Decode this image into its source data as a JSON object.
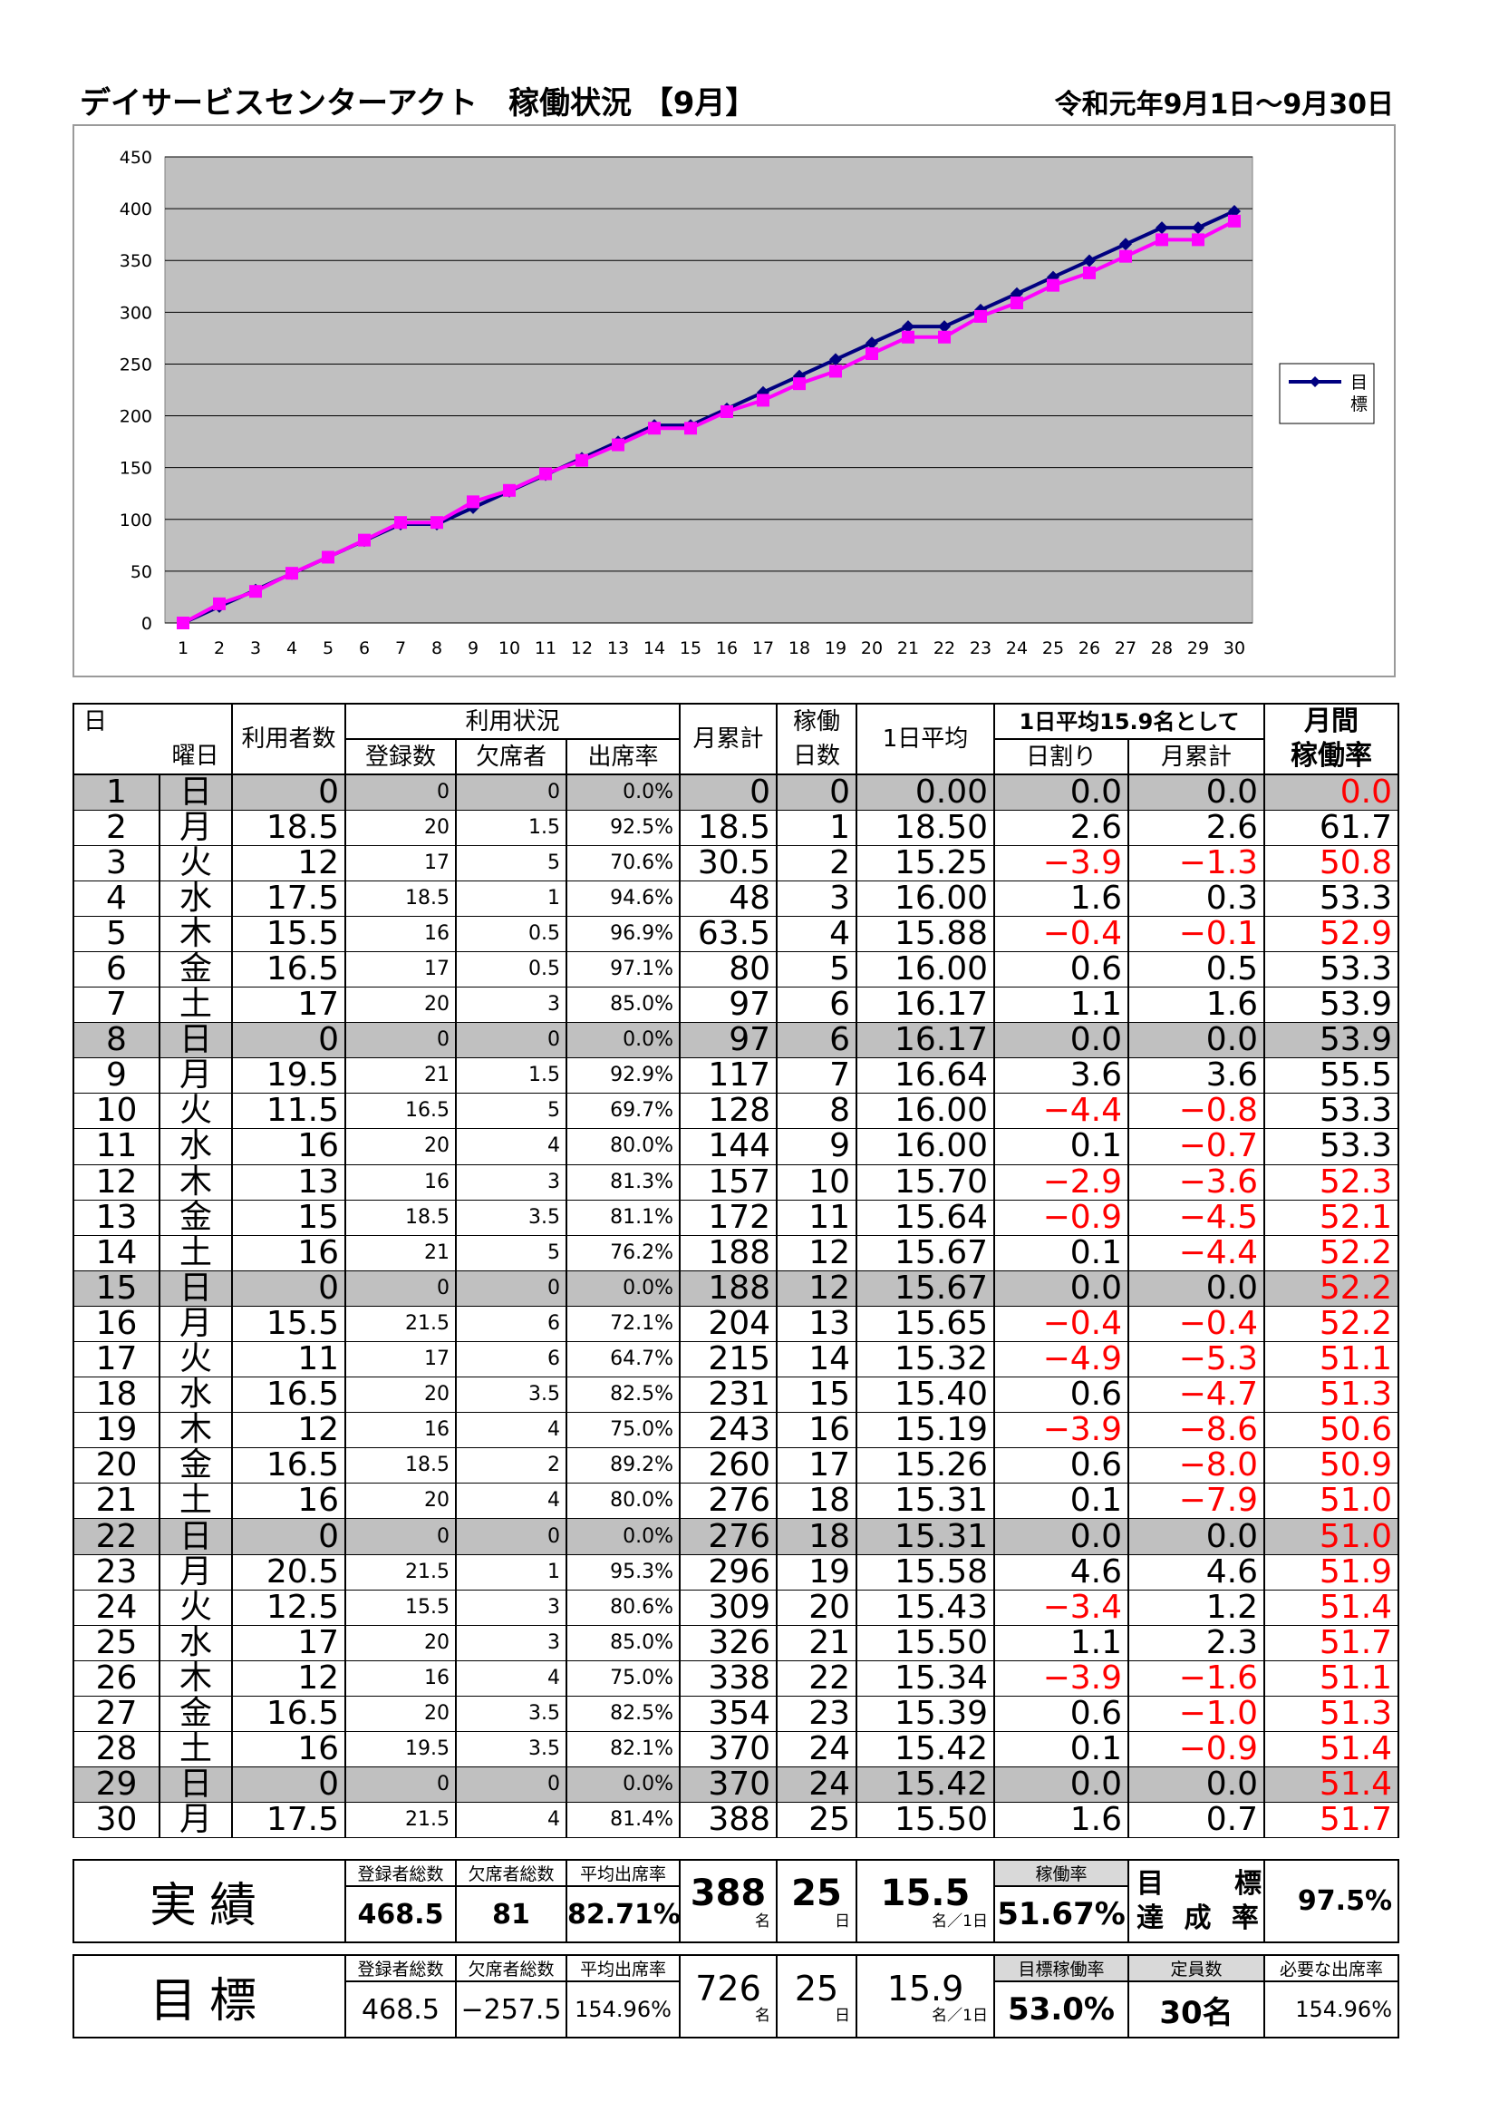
{
  "title": "デイサービスセンターアクト　稼働状況 【9月】",
  "period": "令和元年9月1日～9月30日",
  "chart_data": {
    "type": "line",
    "x": [
      1,
      2,
      3,
      4,
      5,
      6,
      7,
      8,
      9,
      10,
      11,
      12,
      13,
      14,
      15,
      16,
      17,
      18,
      19,
      20,
      21,
      22,
      23,
      24,
      25,
      26,
      27,
      28,
      29,
      30
    ],
    "ylim": [
      0,
      450
    ],
    "yticks": [
      0,
      50,
      100,
      150,
      200,
      250,
      300,
      350,
      400,
      450
    ],
    "legend_position": "right",
    "grid": true,
    "background": "#c0c0c0",
    "series": [
      {
        "name": "目標",
        "color": "#000080",
        "marker": "diamond",
        "values": [
          0,
          15.9,
          31.8,
          47.7,
          63.6,
          79.5,
          95.4,
          95.4,
          111.3,
          127.2,
          143.1,
          159,
          174.9,
          190.8,
          190.8,
          206.7,
          222.6,
          238.5,
          254.4,
          270.3,
          286.2,
          286.2,
          302.1,
          318,
          333.9,
          349.8,
          365.7,
          381.6,
          381.6,
          397.5
        ]
      },
      {
        "color": "#ff00ff",
        "marker": "square",
        "values": [
          0,
          18.5,
          30.5,
          48,
          63.5,
          80,
          97,
          97,
          117,
          128,
          144,
          157,
          172,
          188,
          188,
          204,
          215,
          231,
          243,
          260,
          276,
          276,
          296,
          309,
          326,
          338,
          354,
          370,
          370,
          388
        ]
      }
    ]
  },
  "table": {
    "headers": {
      "day": "日",
      "weekday": "曜日",
      "users": "利用者数",
      "usage": "利用状況",
      "registered": "登録数",
      "absent": "欠席者",
      "attendance": "出席率",
      "cumulative": "月累計",
      "working": "稼働",
      "working2": "日数",
      "avg": "1日平均",
      "assume": "1日平均15.9名として",
      "daily": "日割り",
      "monthcum": "月累計",
      "rate1": "月間",
      "rate2": "稼働率"
    },
    "rows": [
      {
        "day": "1",
        "wd": "日",
        "users": "0",
        "reg": "0",
        "abs": "0",
        "att": "0.0%",
        "cum": "0",
        "days": "0",
        "avg": "0.00",
        "daily": "0.0",
        "mcum": "0.0",
        "rate": "0.0",
        "sun": true,
        "dneg": false,
        "mneg": false,
        "rneg": true
      },
      {
        "day": "2",
        "wd": "月",
        "users": "18.5",
        "reg": "20",
        "abs": "1.5",
        "att": "92.5%",
        "cum": "18.5",
        "days": "1",
        "avg": "18.50",
        "daily": "2.6",
        "mcum": "2.6",
        "rate": "61.7",
        "sun": false,
        "dneg": false,
        "mneg": false,
        "rneg": false
      },
      {
        "day": "3",
        "wd": "火",
        "users": "12",
        "reg": "17",
        "abs": "5",
        "att": "70.6%",
        "cum": "30.5",
        "days": "2",
        "avg": "15.25",
        "daily": "−3.9",
        "mcum": "−1.3",
        "rate": "50.8",
        "sun": false,
        "dneg": true,
        "mneg": true,
        "rneg": true
      },
      {
        "day": "4",
        "wd": "水",
        "users": "17.5",
        "reg": "18.5",
        "abs": "1",
        "att": "94.6%",
        "cum": "48",
        "days": "3",
        "avg": "16.00",
        "daily": "1.6",
        "mcum": "0.3",
        "rate": "53.3",
        "sun": false,
        "dneg": false,
        "mneg": false,
        "rneg": false
      },
      {
        "day": "5",
        "wd": "木",
        "users": "15.5",
        "reg": "16",
        "abs": "0.5",
        "att": "96.9%",
        "cum": "63.5",
        "days": "4",
        "avg": "15.88",
        "daily": "−0.4",
        "mcum": "−0.1",
        "rate": "52.9",
        "sun": false,
        "dneg": true,
        "mneg": true,
        "rneg": true
      },
      {
        "day": "6",
        "wd": "金",
        "users": "16.5",
        "reg": "17",
        "abs": "0.5",
        "att": "97.1%",
        "cum": "80",
        "days": "5",
        "avg": "16.00",
        "daily": "0.6",
        "mcum": "0.5",
        "rate": "53.3",
        "sun": false,
        "dneg": false,
        "mneg": false,
        "rneg": false
      },
      {
        "day": "7",
        "wd": "土",
        "users": "17",
        "reg": "20",
        "abs": "3",
        "att": "85.0%",
        "cum": "97",
        "days": "6",
        "avg": "16.17",
        "daily": "1.1",
        "mcum": "1.6",
        "rate": "53.9",
        "sun": false,
        "dneg": false,
        "mneg": false,
        "rneg": false
      },
      {
        "day": "8",
        "wd": "日",
        "users": "0",
        "reg": "0",
        "abs": "0",
        "att": "0.0%",
        "cum": "97",
        "days": "6",
        "avg": "16.17",
        "daily": "0.0",
        "mcum": "0.0",
        "rate": "53.9",
        "sun": true,
        "dneg": false,
        "mneg": false,
        "rneg": false
      },
      {
        "day": "9",
        "wd": "月",
        "users": "19.5",
        "reg": "21",
        "abs": "1.5",
        "att": "92.9%",
        "cum": "117",
        "days": "7",
        "avg": "16.64",
        "daily": "3.6",
        "mcum": "3.6",
        "rate": "55.5",
        "sun": false,
        "dneg": false,
        "mneg": false,
        "rneg": false
      },
      {
        "day": "10",
        "wd": "火",
        "users": "11.5",
        "reg": "16.5",
        "abs": "5",
        "att": "69.7%",
        "cum": "128",
        "days": "8",
        "avg": "16.00",
        "daily": "−4.4",
        "mcum": "−0.8",
        "rate": "53.3",
        "sun": false,
        "dneg": true,
        "mneg": true,
        "rneg": false
      },
      {
        "day": "11",
        "wd": "水",
        "users": "16",
        "reg": "20",
        "abs": "4",
        "att": "80.0%",
        "cum": "144",
        "days": "9",
        "avg": "16.00",
        "daily": "0.1",
        "mcum": "−0.7",
        "rate": "53.3",
        "sun": false,
        "dneg": false,
        "mneg": true,
        "rneg": false
      },
      {
        "day": "12",
        "wd": "木",
        "users": "13",
        "reg": "16",
        "abs": "3",
        "att": "81.3%",
        "cum": "157",
        "days": "10",
        "avg": "15.70",
        "daily": "−2.9",
        "mcum": "−3.6",
        "rate": "52.3",
        "sun": false,
        "dneg": true,
        "mneg": true,
        "rneg": true
      },
      {
        "day": "13",
        "wd": "金",
        "users": "15",
        "reg": "18.5",
        "abs": "3.5",
        "att": "81.1%",
        "cum": "172",
        "days": "11",
        "avg": "15.64",
        "daily": "−0.9",
        "mcum": "−4.5",
        "rate": "52.1",
        "sun": false,
        "dneg": true,
        "mneg": true,
        "rneg": true
      },
      {
        "day": "14",
        "wd": "土",
        "users": "16",
        "reg": "21",
        "abs": "5",
        "att": "76.2%",
        "cum": "188",
        "days": "12",
        "avg": "15.67",
        "daily": "0.1",
        "mcum": "−4.4",
        "rate": "52.2",
        "sun": false,
        "dneg": false,
        "mneg": true,
        "rneg": true
      },
      {
        "day": "15",
        "wd": "日",
        "users": "0",
        "reg": "0",
        "abs": "0",
        "att": "0.0%",
        "cum": "188",
        "days": "12",
        "avg": "15.67",
        "daily": "0.0",
        "mcum": "0.0",
        "rate": "52.2",
        "sun": true,
        "dneg": false,
        "mneg": false,
        "rneg": true
      },
      {
        "day": "16",
        "wd": "月",
        "users": "15.5",
        "reg": "21.5",
        "abs": "6",
        "att": "72.1%",
        "cum": "204",
        "days": "13",
        "avg": "15.65",
        "daily": "−0.4",
        "mcum": "−0.4",
        "rate": "52.2",
        "sun": false,
        "dneg": true,
        "mneg": true,
        "rneg": true
      },
      {
        "day": "17",
        "wd": "火",
        "users": "11",
        "reg": "17",
        "abs": "6",
        "att": "64.7%",
        "cum": "215",
        "days": "14",
        "avg": "15.32",
        "daily": "−4.9",
        "mcum": "−5.3",
        "rate": "51.1",
        "sun": false,
        "dneg": true,
        "mneg": true,
        "rneg": true
      },
      {
        "day": "18",
        "wd": "水",
        "users": "16.5",
        "reg": "20",
        "abs": "3.5",
        "att": "82.5%",
        "cum": "231",
        "days": "15",
        "avg": "15.40",
        "daily": "0.6",
        "mcum": "−4.7",
        "rate": "51.3",
        "sun": false,
        "dneg": false,
        "mneg": true,
        "rneg": true
      },
      {
        "day": "19",
        "wd": "木",
        "users": "12",
        "reg": "16",
        "abs": "4",
        "att": "75.0%",
        "cum": "243",
        "days": "16",
        "avg": "15.19",
        "daily": "−3.9",
        "mcum": "−8.6",
        "rate": "50.6",
        "sun": false,
        "dneg": true,
        "mneg": true,
        "rneg": true
      },
      {
        "day": "20",
        "wd": "金",
        "users": "16.5",
        "reg": "18.5",
        "abs": "2",
        "att": "89.2%",
        "cum": "260",
        "days": "17",
        "avg": "15.26",
        "daily": "0.6",
        "mcum": "−8.0",
        "rate": "50.9",
        "sun": false,
        "dneg": false,
        "mneg": true,
        "rneg": true
      },
      {
        "day": "21",
        "wd": "土",
        "users": "16",
        "reg": "20",
        "abs": "4",
        "att": "80.0%",
        "cum": "276",
        "days": "18",
        "avg": "15.31",
        "daily": "0.1",
        "mcum": "−7.9",
        "rate": "51.0",
        "sun": false,
        "dneg": false,
        "mneg": true,
        "rneg": true
      },
      {
        "day": "22",
        "wd": "日",
        "users": "0",
        "reg": "0",
        "abs": "0",
        "att": "0.0%",
        "cum": "276",
        "days": "18",
        "avg": "15.31",
        "daily": "0.0",
        "mcum": "0.0",
        "rate": "51.0",
        "sun": true,
        "dneg": false,
        "mneg": false,
        "rneg": true
      },
      {
        "day": "23",
        "wd": "月",
        "users": "20.5",
        "reg": "21.5",
        "abs": "1",
        "att": "95.3%",
        "cum": "296",
        "days": "19",
        "avg": "15.58",
        "daily": "4.6",
        "mcum": "4.6",
        "rate": "51.9",
        "sun": false,
        "dneg": false,
        "mneg": false,
        "rneg": true
      },
      {
        "day": "24",
        "wd": "火",
        "users": "12.5",
        "reg": "15.5",
        "abs": "3",
        "att": "80.6%",
        "cum": "309",
        "days": "20",
        "avg": "15.43",
        "daily": "−3.4",
        "mcum": "1.2",
        "rate": "51.4",
        "sun": false,
        "dneg": true,
        "mneg": false,
        "rneg": true
      },
      {
        "day": "25",
        "wd": "水",
        "users": "17",
        "reg": "20",
        "abs": "3",
        "att": "85.0%",
        "cum": "326",
        "days": "21",
        "avg": "15.50",
        "daily": "1.1",
        "mcum": "2.3",
        "rate": "51.7",
        "sun": false,
        "dneg": false,
        "mneg": false,
        "rneg": true
      },
      {
        "day": "26",
        "wd": "木",
        "users": "12",
        "reg": "16",
        "abs": "4",
        "att": "75.0%",
        "cum": "338",
        "days": "22",
        "avg": "15.34",
        "daily": "−3.9",
        "mcum": "−1.6",
        "rate": "51.1",
        "sun": false,
        "dneg": true,
        "mneg": true,
        "rneg": true
      },
      {
        "day": "27",
        "wd": "金",
        "users": "16.5",
        "reg": "20",
        "abs": "3.5",
        "att": "82.5%",
        "cum": "354",
        "days": "23",
        "avg": "15.39",
        "daily": "0.6",
        "mcum": "−1.0",
        "rate": "51.3",
        "sun": false,
        "dneg": false,
        "mneg": true,
        "rneg": true
      },
      {
        "day": "28",
        "wd": "土",
        "users": "16",
        "reg": "19.5",
        "abs": "3.5",
        "att": "82.1%",
        "cum": "370",
        "days": "24",
        "avg": "15.42",
        "daily": "0.1",
        "mcum": "−0.9",
        "rate": "51.4",
        "sun": false,
        "dneg": false,
        "mneg": true,
        "rneg": true
      },
      {
        "day": "29",
        "wd": "日",
        "users": "0",
        "reg": "0",
        "abs": "0",
        "att": "0.0%",
        "cum": "370",
        "days": "24",
        "avg": "15.42",
        "daily": "0.0",
        "mcum": "0.0",
        "rate": "51.4",
        "sun": true,
        "dneg": false,
        "mneg": false,
        "rneg": true
      },
      {
        "day": "30",
        "wd": "月",
        "users": "17.5",
        "reg": "21.5",
        "abs": "4",
        "att": "81.4%",
        "cum": "388",
        "days": "25",
        "avg": "15.50",
        "daily": "1.6",
        "mcum": "0.7",
        "rate": "51.7",
        "sun": false,
        "dneg": false,
        "mneg": false,
        "rneg": true
      }
    ]
  },
  "actual": {
    "label": "実績",
    "h_reg_total": "登録者総数",
    "h_abs_total": "欠席者総数",
    "h_avg_att": "平均出席率",
    "reg_total": "468.5",
    "abs_total": "81",
    "avg_att": "82.71%",
    "cum": "388",
    "cum_unit": "名",
    "days": "25",
    "days_unit": "日",
    "avg": "15.5",
    "avg_unit": "名／1日",
    "h_rate": "稼働率",
    "rate": "51.67%",
    "goal_label1": "目　　標",
    "goal_label2": "達 成 率",
    "achieve": "97.5%"
  },
  "target": {
    "label": "目標",
    "h_reg_total": "登録者総数",
    "h_abs_total": "欠席者総数",
    "h_avg_att": "平均出席率",
    "reg_total": "468.5",
    "abs_total": "−257.5",
    "avg_att": "154.96%",
    "cum": "726",
    "cum_unit": "名",
    "days": "25",
    "days_unit": "日",
    "avg": "15.9",
    "avg_unit": "名／1日",
    "h_rate": "目標稼働率",
    "rate": "53.0%",
    "h_capacity": "定員数",
    "capacity": "30名",
    "h_need": "必要な出席率",
    "need": "154.96%"
  }
}
